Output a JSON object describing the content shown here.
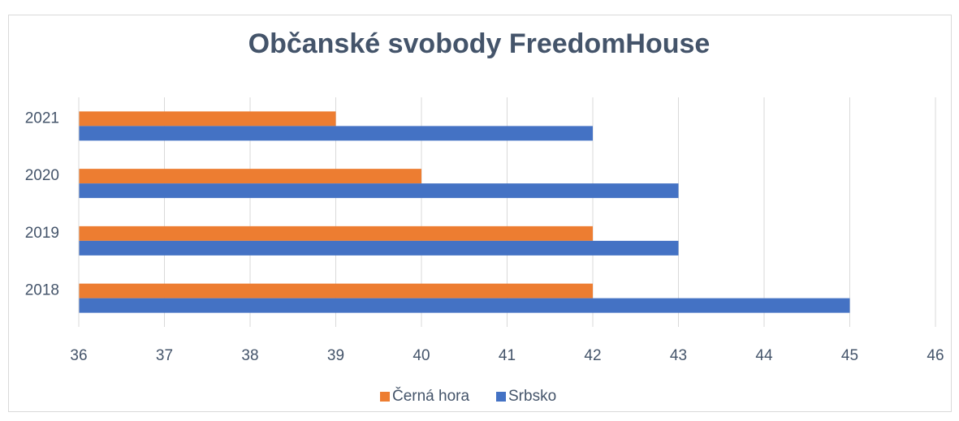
{
  "chart_data": {
    "type": "hbar",
    "title": "Občanské svobody FreedomHouse",
    "categories": [
      "2018",
      "2019",
      "2020",
      "2021"
    ],
    "series": [
      {
        "name": "Černá hora",
        "color": "#ed7d31",
        "values": [
          42,
          42,
          40,
          39
        ]
      },
      {
        "name": "Srbsko",
        "color": "#4472c4",
        "values": [
          45,
          43,
          43,
          42
        ]
      }
    ],
    "xlim": [
      36,
      46
    ],
    "xticks": [
      36,
      37,
      38,
      39,
      40,
      41,
      42,
      43,
      44,
      45,
      46
    ],
    "grid": true,
    "legend": "bottom"
  }
}
